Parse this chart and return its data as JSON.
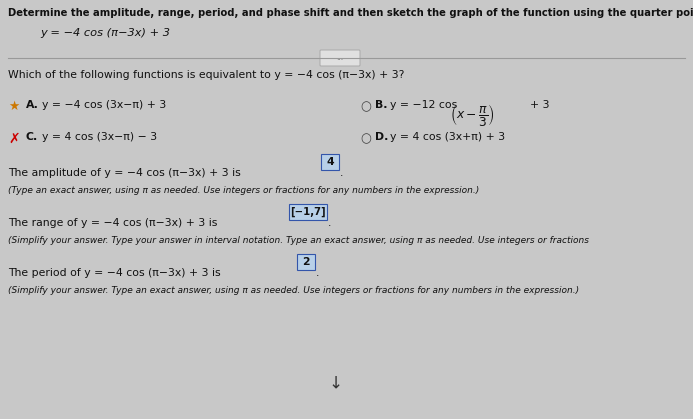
{
  "background_color": "#c8c8c8",
  "title_text": "Determine the amplitude, range, period, and phase shift and then sketch the graph of the function using the quarter points.",
  "function_display": "y = −4 cos (π−3x) + 3",
  "question_text": "Which of the following functions is equivalent to y = −4 cos (π−3x) + 3?",
  "option_A_text": "y = −4 cos (3x−π) + 3",
  "option_B_pre": "y = −12 cos",
  "option_B_post": "+ 3",
  "option_C_text": "y = 4 cos (3x−π) − 3",
  "option_D_text": "y = 4 cos (3x+π) + 3",
  "amplitude_label": "The amplitude of y = −4 cos (π−3x) + 3 is",
  "amplitude_value": "4",
  "amplitude_note": "(Type an exact answer, using π as needed. Use integers or fractions for any numbers in the expression.)",
  "range_label": "The range of y = −4 cos (π−3x) + 3 is",
  "range_value": "[−1,7]",
  "range_note": "(Simplify your answer. Type your answer in interval notation. Type an exact answer, using π as needed. Use integers or fractions",
  "period_label": "The period of y = −4 cos (π−3x) + 3 is",
  "period_value": "2",
  "period_note": "(Simplify your answer. Type an exact answer, using π as needed. Use integers or fractions for any numbers in the expression.)",
  "cursor_text": "⬆",
  "text_color": "#111111",
  "highlight_color": "#b8d0e8",
  "box_edge_color": "#3355aa",
  "font_size_title": 7.2,
  "font_size_body": 7.8,
  "font_size_small": 6.5,
  "font_size_func": 8.2
}
